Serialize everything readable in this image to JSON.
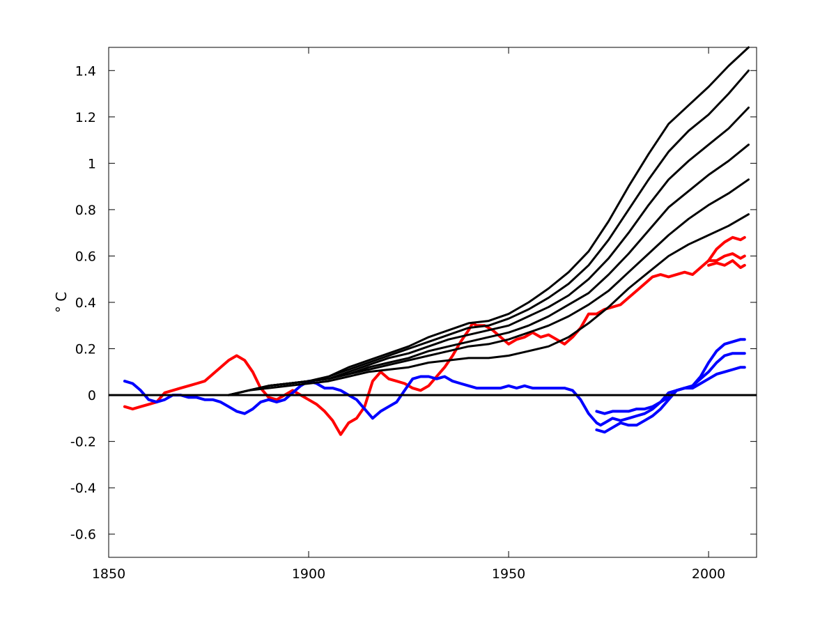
{
  "chart_data": {
    "type": "line",
    "title": "",
    "xlabel": "",
    "ylabel": "° C",
    "xlim": [
      1850,
      2012
    ],
    "ylim": [
      -0.7,
      1.5
    ],
    "x_ticks": [
      1850,
      1900,
      1950,
      2000
    ],
    "y_ticks": [
      -0.6,
      -0.4,
      -0.2,
      0,
      0.2,
      0.4,
      0.6,
      0.8,
      1,
      1.2,
      1.4
    ],
    "x_tick_labels": [
      "1850",
      "1900",
      "1950",
      "2000"
    ],
    "y_tick_labels": [
      "-0.6",
      "-0.4",
      "-0.2",
      "0",
      "0.2",
      "0.4",
      "0.6",
      "0.8",
      "1",
      "1.2",
      "1.4"
    ],
    "grid": false,
    "legend": "none",
    "zero_line": 0,
    "series": [
      {
        "color": "#ff0000",
        "x": [
          1854,
          1856,
          1858,
          1860,
          1862,
          1864,
          1866,
          1868,
          1870,
          1872,
          1874,
          1876,
          1878,
          1880,
          1882,
          1884,
          1886,
          1888,
          1890,
          1892,
          1894,
          1896,
          1898,
          1900,
          1902,
          1904,
          1906,
          1907,
          1908,
          1910,
          1912,
          1914,
          1916,
          1918,
          1920,
          1922,
          1924,
          1926,
          1928,
          1930,
          1932,
          1934,
          1936,
          1938,
          1940,
          1941,
          1942,
          1944,
          1946,
          1948,
          1950,
          1952,
          1954,
          1956,
          1958,
          1960,
          1962,
          1964,
          1966,
          1968,
          1970,
          1972,
          1974,
          1976,
          1978,
          1980,
          1982,
          1984,
          1986,
          1988,
          1990,
          1992,
          1994,
          1996,
          1998,
          2000,
          2002,
          2004,
          2006,
          2008,
          2009
        ],
        "y": [
          -0.05,
          -0.06,
          -0.05,
          -0.04,
          -0.03,
          0.01,
          0.02,
          0.03,
          0.04,
          0.05,
          0.06,
          0.09,
          0.12,
          0.15,
          0.17,
          0.15,
          0.1,
          0.03,
          -0.01,
          -0.02,
          0,
          0.02,
          0.0,
          -0.02,
          -0.04,
          -0.07,
          -0.11,
          -0.14,
          -0.17,
          -0.12,
          -0.1,
          -0.05,
          0.06,
          0.1,
          0.07,
          0.06,
          0.05,
          0.03,
          0.02,
          0.04,
          0.08,
          0.12,
          0.17,
          0.23,
          0.28,
          0.31,
          0.3,
          0.3,
          0.28,
          0.25,
          0.22,
          0.24,
          0.25,
          0.27,
          0.25,
          0.26,
          0.24,
          0.22,
          0.25,
          0.29,
          0.35,
          0.35,
          0.37,
          0.38,
          0.39,
          0.42,
          0.45,
          0.48,
          0.51,
          0.52,
          0.51,
          0.52,
          0.53,
          0.52,
          0.55,
          0.58,
          0.58,
          0.6,
          0.61,
          0.59,
          0.6
        ]
      },
      {
        "color": "#ff0000",
        "x": [
          2000,
          2002,
          2004,
          2006,
          2008,
          2009
        ],
        "y": [
          0.58,
          0.63,
          0.66,
          0.68,
          0.67,
          0.68
        ]
      },
      {
        "color": "#ff0000",
        "x": [
          2000,
          2002,
          2004,
          2006,
          2008,
          2009
        ],
        "y": [
          0.56,
          0.57,
          0.56,
          0.58,
          0.55,
          0.56
        ]
      },
      {
        "color": "#0000ff",
        "x": [
          1854,
          1856,
          1858,
          1860,
          1862,
          1864,
          1866,
          1868,
          1870,
          1872,
          1874,
          1876,
          1878,
          1880,
          1882,
          1884,
          1886,
          1888,
          1890,
          1892,
          1894,
          1896,
          1898,
          1900,
          1902,
          1904,
          1906,
          1908,
          1910,
          1912,
          1914,
          1916,
          1918,
          1920,
          1922,
          1924,
          1926,
          1928,
          1930,
          1932,
          1934,
          1936,
          1938,
          1940,
          1942,
          1944,
          1946,
          1948,
          1950,
          1952,
          1954,
          1956,
          1958,
          1960,
          1962,
          1964,
          1966,
          1968,
          1970,
          1972,
          1973,
          1974,
          1976,
          1978,
          1980,
          1982,
          1984,
          1986,
          1988,
          1990,
          1992,
          1994,
          1996,
          1998,
          2000,
          2002,
          2004,
          2006,
          2008,
          2009
        ],
        "y": [
          0.06,
          0.05,
          0.02,
          -0.02,
          -0.03,
          -0.02,
          0,
          0.0,
          -0.01,
          -0.01,
          -0.02,
          -0.02,
          -0.03,
          -0.05,
          -0.07,
          -0.08,
          -0.06,
          -0.03,
          -0.02,
          -0.03,
          -0.02,
          0.01,
          0.04,
          0.06,
          0.05,
          0.03,
          0.03,
          0.02,
          0.0,
          -0.02,
          -0.06,
          -0.1,
          -0.07,
          -0.05,
          -0.03,
          0.02,
          0.07,
          0.08,
          0.08,
          0.07,
          0.08,
          0.06,
          0.05,
          0.04,
          0.03,
          0.03,
          0.03,
          0.03,
          0.04,
          0.03,
          0.04,
          0.03,
          0.03,
          0.03,
          0.03,
          0.03,
          0.02,
          -0.02,
          -0.08,
          -0.12,
          -0.13,
          -0.12,
          -0.1,
          -0.11,
          -0.1,
          -0.09,
          -0.08,
          -0.06,
          -0.03,
          0.01,
          0.02,
          0.03,
          0.04,
          0.07,
          0.1,
          0.14,
          0.17,
          0.18,
          0.18,
          0.18
        ]
      },
      {
        "color": "#0000ff",
        "x": [
          1972,
          1974,
          1976,
          1978,
          1980,
          1982,
          1984,
          1986,
          1988,
          1990,
          1992,
          1994,
          1996,
          1998,
          2000,
          2002,
          2004,
          2006,
          2008,
          2009
        ],
        "y": [
          -0.07,
          -0.08,
          -0.07,
          -0.07,
          -0.07,
          -0.06,
          -0.06,
          -0.05,
          -0.03,
          -0.01,
          0.02,
          0.03,
          0.03,
          0.05,
          0.07,
          0.09,
          0.1,
          0.11,
          0.12,
          0.12
        ]
      },
      {
        "color": "#0000ff",
        "x": [
          1972,
          1974,
          1976,
          1978,
          1980,
          1982,
          1984,
          1986,
          1988,
          1990,
          1992,
          1994,
          1996,
          1998,
          2000,
          2002,
          2004,
          2006,
          2008,
          2009
        ],
        "y": [
          -0.15,
          -0.16,
          -0.14,
          -0.12,
          -0.13,
          -0.13,
          -0.11,
          -0.09,
          -0.06,
          -0.02,
          0.02,
          0.03,
          0.04,
          0.08,
          0.14,
          0.19,
          0.22,
          0.23,
          0.24,
          0.24
        ]
      },
      {
        "color": "#000000",
        "x": [
          1880,
          1885,
          1890,
          1895,
          1900,
          1905,
          1910,
          1915,
          1920,
          1925,
          1930,
          1935,
          1940,
          1945,
          1950,
          1955,
          1960,
          1965,
          1970,
          1975,
          1980,
          1985,
          1990,
          1995,
          2000,
          2005,
          2010
        ],
        "y": [
          0.0,
          0.02,
          0.04,
          0.05,
          0.06,
          0.08,
          0.12,
          0.15,
          0.18,
          0.21,
          0.25,
          0.28,
          0.31,
          0.32,
          0.35,
          0.4,
          0.46,
          0.53,
          0.62,
          0.75,
          0.9,
          1.04,
          1.17,
          1.25,
          1.33,
          1.42,
          1.5
        ]
      },
      {
        "color": "#000000",
        "x": [
          1880,
          1885,
          1890,
          1895,
          1900,
          1905,
          1910,
          1915,
          1920,
          1925,
          1930,
          1935,
          1940,
          1945,
          1950,
          1955,
          1960,
          1965,
          1970,
          1975,
          1980,
          1985,
          1990,
          1995,
          2000,
          2005,
          2010
        ],
        "y": [
          0.0,
          0.02,
          0.04,
          0.05,
          0.06,
          0.08,
          0.11,
          0.14,
          0.17,
          0.2,
          0.23,
          0.26,
          0.29,
          0.3,
          0.33,
          0.37,
          0.42,
          0.48,
          0.56,
          0.67,
          0.8,
          0.93,
          1.05,
          1.14,
          1.21,
          1.3,
          1.4
        ]
      },
      {
        "color": "#000000",
        "x": [
          1880,
          1885,
          1890,
          1895,
          1900,
          1905,
          1910,
          1915,
          1920,
          1925,
          1930,
          1935,
          1940,
          1945,
          1950,
          1955,
          1960,
          1965,
          1970,
          1975,
          1980,
          1985,
          1990,
          1995,
          2000,
          2005,
          2010
        ],
        "y": [
          0.0,
          0.02,
          0.04,
          0.05,
          0.06,
          0.07,
          0.1,
          0.13,
          0.16,
          0.18,
          0.21,
          0.24,
          0.26,
          0.28,
          0.3,
          0.34,
          0.38,
          0.43,
          0.5,
          0.59,
          0.7,
          0.82,
          0.93,
          1.01,
          1.08,
          1.15,
          1.24
        ]
      },
      {
        "color": "#000000",
        "x": [
          1880,
          1885,
          1890,
          1895,
          1900,
          1905,
          1910,
          1915,
          1920,
          1925,
          1930,
          1935,
          1940,
          1945,
          1950,
          1955,
          1960,
          1965,
          1970,
          1975,
          1980,
          1985,
          1990,
          1995,
          2000,
          2005,
          2010
        ],
        "y": [
          0.0,
          0.02,
          0.04,
          0.05,
          0.06,
          0.07,
          0.09,
          0.12,
          0.14,
          0.16,
          0.19,
          0.21,
          0.23,
          0.25,
          0.27,
          0.3,
          0.34,
          0.39,
          0.44,
          0.52,
          0.61,
          0.71,
          0.81,
          0.88,
          0.95,
          1.01,
          1.08
        ]
      },
      {
        "color": "#000000",
        "x": [
          1880,
          1885,
          1890,
          1895,
          1900,
          1905,
          1910,
          1915,
          1920,
          1925,
          1930,
          1935,
          1940,
          1945,
          1950,
          1955,
          1960,
          1965,
          1970,
          1975,
          1980,
          1985,
          1990,
          1995,
          2000,
          2005,
          2010
        ],
        "y": [
          0.0,
          0.02,
          0.04,
          0.05,
          0.06,
          0.07,
          0.09,
          0.11,
          0.13,
          0.15,
          0.17,
          0.19,
          0.21,
          0.22,
          0.24,
          0.27,
          0.3,
          0.34,
          0.39,
          0.45,
          0.53,
          0.61,
          0.69,
          0.76,
          0.82,
          0.87,
          0.93
        ]
      },
      {
        "color": "#000000",
        "x": [
          1880,
          1885,
          1890,
          1895,
          1900,
          1905,
          1910,
          1915,
          1920,
          1925,
          1930,
          1935,
          1940,
          1945,
          1950,
          1955,
          1960,
          1965,
          1970,
          1975,
          1980,
          1985,
          1990,
          1995,
          2000,
          2005,
          2010
        ],
        "y": [
          0.0,
          0.02,
          0.03,
          0.04,
          0.05,
          0.06,
          0.08,
          0.1,
          0.11,
          0.12,
          0.14,
          0.15,
          0.16,
          0.16,
          0.17,
          0.19,
          0.21,
          0.25,
          0.31,
          0.38,
          0.46,
          0.53,
          0.6,
          0.65,
          0.69,
          0.73,
          0.78
        ]
      }
    ]
  }
}
